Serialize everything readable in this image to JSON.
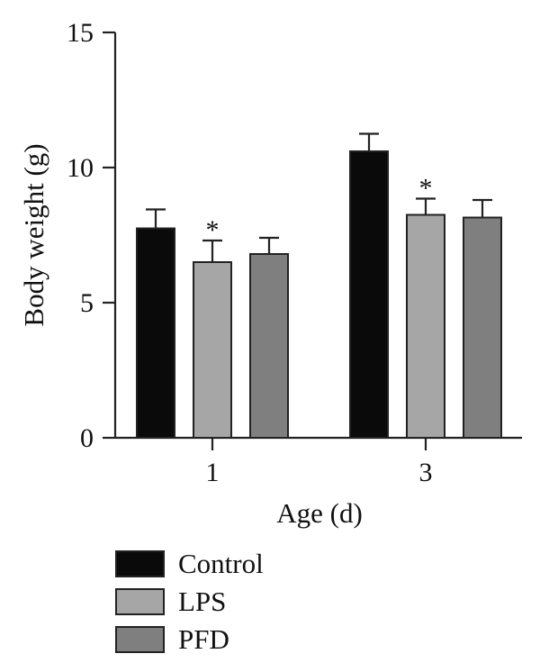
{
  "chart_data": {
    "type": "bar",
    "title": "",
    "xlabel": "Age (d)",
    "ylabel": "Body weight (g)",
    "ylim": [
      0,
      15
    ],
    "yticks": [
      "0",
      "5",
      "10",
      "15"
    ],
    "categories": [
      "1",
      "3"
    ],
    "series": [
      {
        "name": "Control",
        "color": "#0a0a0a",
        "values": [
          7.75,
          10.6
        ],
        "errors": [
          0.7,
          0.65
        ],
        "significance": [
          "",
          ""
        ]
      },
      {
        "name": "LPS",
        "color": "#a6a6a6",
        "values": [
          6.5,
          8.25
        ],
        "errors": [
          0.8,
          0.6
        ],
        "significance": [
          "*",
          "*"
        ]
      },
      {
        "name": "PFD",
        "color": "#7f7f7f",
        "values": [
          6.8,
          8.15
        ],
        "errors": [
          0.6,
          0.65
        ],
        "significance": [
          "",
          ""
        ]
      }
    ],
    "grid": false,
    "legend_position": "bottom-left"
  }
}
